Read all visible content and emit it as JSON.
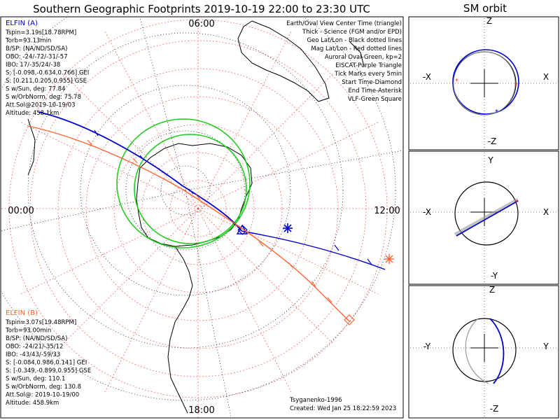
{
  "title": "Southern Geographic Footprints 2019-10-19 22:00 to 23:30 UTC",
  "sm_title": "SM orbit",
  "legend": [
    {
      "text": "Earth/Oval View Center Time (triangle)",
      "color": "#000000"
    },
    {
      "text": "Thick - Science (FGM and/or EPD)",
      "color": "#000000"
    },
    {
      "text": "Geo Lat/Lon - Black dotted lines",
      "color": "#000000"
    },
    {
      "text": "Mag Lat/Lon - Red dotted lines",
      "color": "#ff0000"
    },
    {
      "text": "Auroral Oval-Green, kp=2",
      "color": "#00bb00"
    },
    {
      "text": "EISCAT-Purple Triangle",
      "color": "#cc66cc"
    },
    {
      "text": "Tick Marks every 5min",
      "color": "#000000"
    },
    {
      "text": "Start Time-Diamond",
      "color": "#000000"
    },
    {
      "text": "End Time-Asterisk",
      "color": "#000000"
    },
    {
      "text": "VLF-Green Square",
      "color": "#33cc33"
    }
  ],
  "elfin_a": {
    "name": "ELFIN (A)",
    "color": "#0000cc",
    "lines": [
      "Tspin=3.19s[18.78RPM]",
      "Torb=93.13min",
      "B/SP: (NA/ND/SD/SA)",
      "OBO: -24/-72/-31/-57",
      "IBO: 17/-35/24/-38",
      "S: [-0.098,-0.634,0.766] GEI",
      "S: [0.211,0.205,0.955] GSE",
      "S w/Sun, deg: 77.84",
      "S w/OrbNorm, deg: 75.78",
      "Att.Sol@2019-10-19/03",
      "Altitude: 458.1km"
    ]
  },
  "elfin_b": {
    "name": "ELFIN (B)",
    "color": "#ff6633",
    "lines": [
      "Tspin=3.07s[19.48RPM]",
      "Torb=93.00min",
      "B/SP: (NA/ND/SD/SA)",
      "OBO: -24/21/-35/12",
      "IBO: -43/43/-59/33",
      "S: [-0.084,0.986,0.141] GEI",
      "S: [-0.349,-0.899,0.955] GSE",
      "S w/Sun, deg: 110.1",
      "S w/OrbNorm, deg: 130.8",
      "Att.Sol@: 2019-10-19/00",
      "Altitude: 458.9km"
    ]
  },
  "time_labels": {
    "top": "06:00",
    "left": "00:00",
    "right": "12:00",
    "bottom": "18:00"
  },
  "credit_model": "Tsyganenko-1996",
  "credit_created": "Created: Wed Jan 25 18:22:59 2023",
  "sm_panels": [
    {
      "top": "Z",
      "bottom": "-Z",
      "left": "-X",
      "right": "X"
    },
    {
      "top": "Y",
      "bottom": "-Y",
      "left": "-X",
      "right": "X"
    },
    {
      "top": "Z",
      "bottom": "-Z",
      "left": "-Y",
      "right": "Y"
    }
  ],
  "colors": {
    "elfin_a": "#0000cc",
    "elfin_b": "#ff6633",
    "oval": "#22cc22",
    "grid_mag": "#ff3333",
    "grid_geo": "#000000"
  }
}
